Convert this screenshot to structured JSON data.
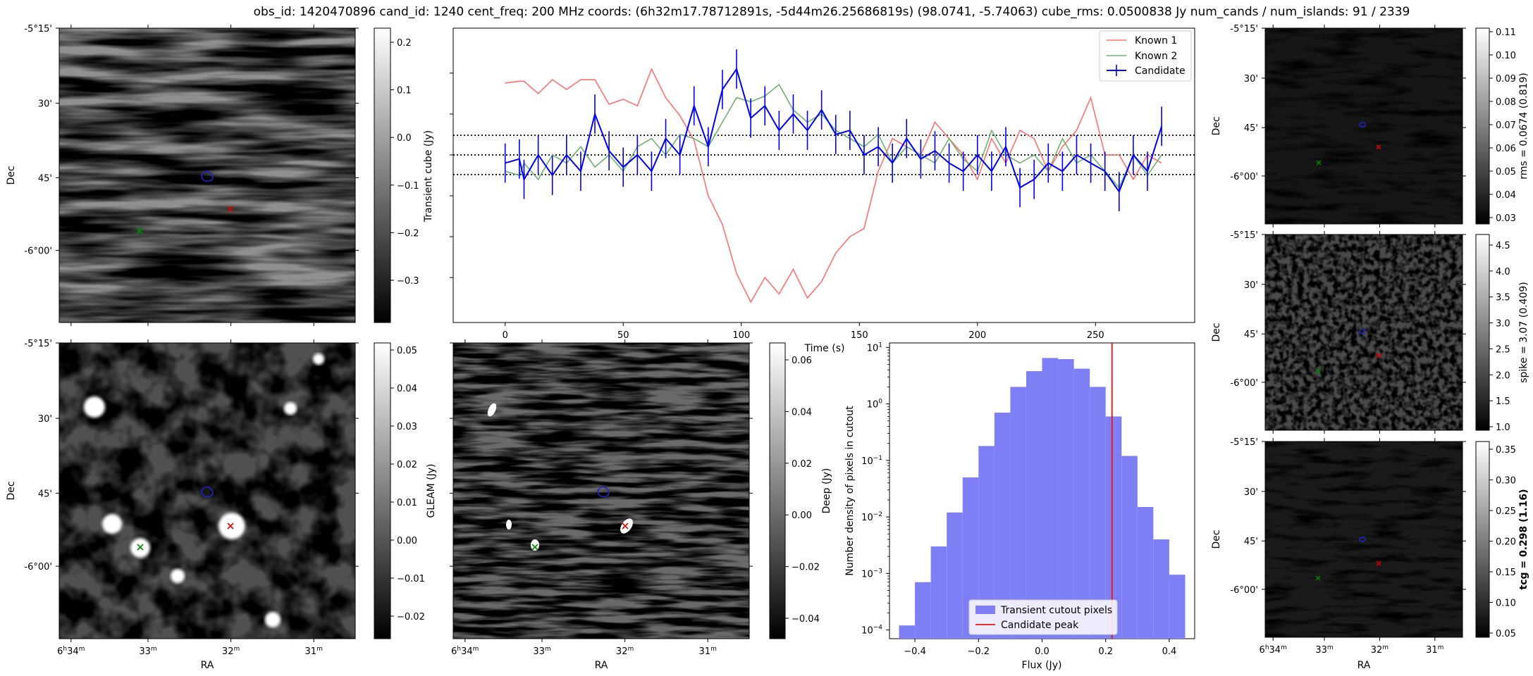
{
  "suptitle": "obs_id: 1420470896 cand_id: 1240 cent_freq: 200 MHz coords: (6h32m17.78712891s, -5d44m26.25686819s) (98.0741, -5.74063) cube_rms: 0.0500838 Jy num_cands / num_islands: 91 / 2339",
  "colors": {
    "known1": "#ff7070",
    "known2": "#70b070",
    "candidate": "#0000ee",
    "peak": "#ee1111",
    "hist_fill": "#7f7ff5",
    "marker_green": "#008800",
    "marker_red": "#dd0000",
    "contour": "#2222cc"
  },
  "image_axes": {
    "ra_ticks": [
      "6h34m",
      "33m",
      "32m",
      "31m"
    ],
    "ra_ticks_parts": [
      [
        "6",
        "h",
        "34",
        "m"
      ],
      [
        "",
        "",
        "33",
        "m"
      ],
      [
        "",
        "",
        "32",
        "m"
      ],
      [
        "",
        "",
        "31",
        "m"
      ]
    ],
    "dec_ticks": [
      "-5°15'",
      "30'",
      "45'",
      "-6°00'"
    ],
    "xlabel": "RA",
    "ylabel": "Dec"
  },
  "panels": {
    "transient": {
      "cbar_label": "Transient cube (Jy)",
      "cbar_ticks": [
        "0.2",
        "0.1",
        "0.0",
        "−0.1",
        "−0.2",
        "−0.3"
      ]
    },
    "gleam": {
      "cbar_label": "GLEAM (Jy)",
      "cbar_ticks": [
        "0.05",
        "0.04",
        "0.03",
        "0.02",
        "0.01",
        "0.00",
        "−0.01",
        "−0.02"
      ]
    },
    "deep": {
      "cbar_label": "Deep (Jy)",
      "cbar_ticks": [
        "0.06",
        "0.04",
        "0.02",
        "0.00",
        "−0.02",
        "−0.04"
      ]
    },
    "rms": {
      "cbar_label": "rms = 0.0674 (0.819)",
      "cbar_ticks": [
        "0.11",
        "0.10",
        "0.09",
        "0.08",
        "0.07",
        "0.06",
        "0.05",
        "0.04",
        "0.03"
      ]
    },
    "spike": {
      "cbar_label": "spike = 3.07 (0.409)",
      "cbar_ticks": [
        "4.5",
        "4.0",
        "3.5",
        "3.0",
        "2.5",
        "2.0",
        "1.5",
        "1.0"
      ]
    },
    "tcg": {
      "cbar_label": "tcg = 0.298 (1.16)",
      "cbar_ticks": [
        "0.35",
        "0.30",
        "0.25",
        "0.20",
        "0.15",
        "0.10",
        "0.05"
      ]
    }
  },
  "chart_data": [
    {
      "type": "line",
      "title": "",
      "xlabel": "Time (s)",
      "ylabel": "",
      "xlim": [
        -22,
        292
      ],
      "xticks": [
        0,
        50,
        100,
        150,
        200,
        250
      ],
      "xtick_labels": [
        "0",
        "50",
        "100",
        "150",
        "200",
        "250"
      ],
      "hlines": [
        0.24,
        0.0,
        -0.24
      ],
      "legend": [
        "Known 1",
        "Known 2",
        "Candidate"
      ],
      "legend_position": "top-right",
      "series": [
        {
          "name": "Known 1",
          "x": [
            0,
            6,
            8,
            14,
            20,
            26,
            32,
            38,
            44,
            50,
            56,
            62,
            68,
            74,
            80,
            86,
            92,
            98,
            104,
            110,
            116,
            122,
            128,
            134,
            140,
            146,
            152,
            158,
            164,
            170,
            176,
            182,
            188,
            194,
            200,
            206,
            212,
            218,
            224,
            230,
            236,
            242,
            248,
            254,
            260,
            266,
            272,
            278
          ],
          "y": [
            0.88,
            0.9,
            0.9,
            0.75,
            0.92,
            0.8,
            0.92,
            0.92,
            0.62,
            0.68,
            0.6,
            1.05,
            0.7,
            0.48,
            0.18,
            -0.5,
            -0.85,
            -1.45,
            -1.8,
            -1.5,
            -1.7,
            -1.4,
            -1.75,
            -1.55,
            -1.2,
            -1.0,
            -0.9,
            -0.2,
            0.2,
            0.1,
            0.0,
            0.4,
            0.2,
            0.0,
            -0.3,
            0.2,
            -0.1,
            0.3,
            0.2,
            -0.2,
            0.1,
            0.3,
            0.7,
            0.0,
            0.0,
            -0.3,
            0.0,
            -0.1
          ]
        },
        {
          "name": "Known 2",
          "x": [
            0,
            6,
            8,
            14,
            20,
            26,
            32,
            38,
            44,
            50,
            56,
            62,
            68,
            74,
            80,
            86,
            92,
            98,
            104,
            110,
            116,
            122,
            128,
            134,
            140,
            146,
            152,
            158,
            164,
            170,
            176,
            182,
            188,
            194,
            200,
            206,
            212,
            218,
            224,
            230,
            236,
            242,
            248,
            254,
            260,
            266,
            272,
            278
          ],
          "y": [
            -0.2,
            -0.25,
            -0.1,
            -0.3,
            0.0,
            -0.1,
            0.1,
            -0.15,
            0.0,
            -0.2,
            0.1,
            0.2,
            0.0,
            0.25,
            0.2,
            0.1,
            0.4,
            0.7,
            0.65,
            0.72,
            0.86,
            0.55,
            0.4,
            0.5,
            0.3,
            0.2,
            0.1,
            0.25,
            -0.1,
            0.1,
            0.0,
            -0.1,
            0.2,
            -0.05,
            -0.2,
            0.3,
            0.0,
            -0.1,
            0.0,
            -0.2,
            0.2,
            -0.1,
            0.0,
            -0.2,
            -0.4,
            0.0,
            -0.25,
            0.0
          ]
        },
        {
          "name": "Candidate",
          "x": [
            0,
            6,
            8,
            14,
            20,
            26,
            32,
            38,
            44,
            50,
            56,
            62,
            68,
            74,
            80,
            86,
            92,
            98,
            104,
            110,
            116,
            122,
            128,
            134,
            140,
            146,
            152,
            158,
            164,
            170,
            176,
            182,
            188,
            194,
            200,
            206,
            212,
            218,
            224,
            230,
            236,
            242,
            248,
            254,
            260,
            266,
            272,
            278
          ],
          "y": [
            -0.1,
            -0.05,
            -0.3,
            0.0,
            -0.25,
            0.0,
            -0.2,
            0.5,
            0.05,
            -0.15,
            0.0,
            -0.2,
            0.2,
            0.0,
            0.6,
            0.1,
            0.8,
            1.05,
            0.45,
            0.6,
            0.3,
            0.5,
            0.3,
            0.55,
            0.25,
            0.3,
            0.0,
            0.1,
            -0.1,
            0.2,
            -0.05,
            0.05,
            -0.1,
            -0.2,
            0.0,
            -0.2,
            0.1,
            -0.4,
            -0.3,
            -0.1,
            -0.2,
            0.0,
            -0.1,
            -0.2,
            -0.45,
            0.0,
            -0.2,
            0.35
          ],
          "yerr": 0.24
        }
      ]
    },
    {
      "type": "bar",
      "title": "",
      "xlabel": "Flux (Jy)",
      "ylabel": "Number density of pixels in cutout",
      "yscale": "log",
      "xlim": [
        -0.48,
        0.48
      ],
      "ylim": [
        7e-05,
        12
      ],
      "xticks": [
        -0.4,
        -0.2,
        0.0,
        0.2,
        0.4
      ],
      "xtick_labels": [
        "−0.4",
        "−0.2",
        "0.0",
        "0.2",
        "0.4"
      ],
      "yticks": [
        0.0001,
        0.001,
        0.01,
        0.1,
        1,
        10
      ],
      "ytick_labels": [
        [
          "10",
          "−4"
        ],
        [
          "10",
          "−3"
        ],
        [
          "10",
          "−2"
        ],
        [
          "10",
          "−1"
        ],
        [
          "10",
          "0"
        ],
        [
          "10",
          "1"
        ]
      ],
      "bin_edges": [
        -0.45,
        -0.4,
        -0.35,
        -0.3,
        -0.25,
        -0.2,
        -0.15,
        -0.1,
        -0.05,
        0.0,
        0.05,
        0.1,
        0.15,
        0.2,
        0.25,
        0.3,
        0.35,
        0.4,
        0.45
      ],
      "values": [
        0.00012,
        0.0007,
        0.003,
        0.012,
        0.05,
        0.18,
        0.7,
        2.0,
        3.8,
        6.5,
        6.2,
        4.2,
        2.0,
        0.6,
        0.12,
        0.015,
        0.004,
        0.00095
      ],
      "vline": 0.22,
      "legend": [
        "Transient cutout pixels",
        "Candidate peak"
      ],
      "legend_position": "lower-center"
    }
  ]
}
